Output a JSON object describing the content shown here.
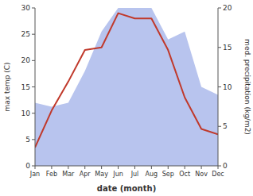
{
  "chart_data": {
    "type": "line",
    "xlabel": "date (month)",
    "ylabel": "max temp (C)",
    "y2label": "med. precipitation (kg/m2)",
    "categories": [
      "Jan",
      "Feb",
      "Mar",
      "Apr",
      "May",
      "Jun",
      "Jul",
      "Aug",
      "Sep",
      "Oct",
      "Nov",
      "Dec"
    ],
    "series": [
      {
        "type": "area",
        "axis": "y2",
        "color": "#b8c4ee",
        "values": [
          8.0,
          7.5,
          8.0,
          12.0,
          17.0,
          20.0,
          20.0,
          20.0,
          16.0,
          17.0,
          10.0,
          9.0
        ]
      },
      {
        "type": "line",
        "color": "#c0392b",
        "values": [
          3.5,
          10.5,
          16.0,
          22.0,
          22.5,
          29.0,
          28.0,
          28.0,
          22.0,
          13.0,
          7.0,
          6.0
        ]
      }
    ],
    "ylim": [
      0,
      30
    ],
    "yticks": [
      0,
      5,
      10,
      15,
      20,
      25,
      30
    ],
    "y2lim": [
      0,
      20
    ],
    "y2ticks": [
      0,
      5,
      10,
      15,
      20
    ]
  }
}
